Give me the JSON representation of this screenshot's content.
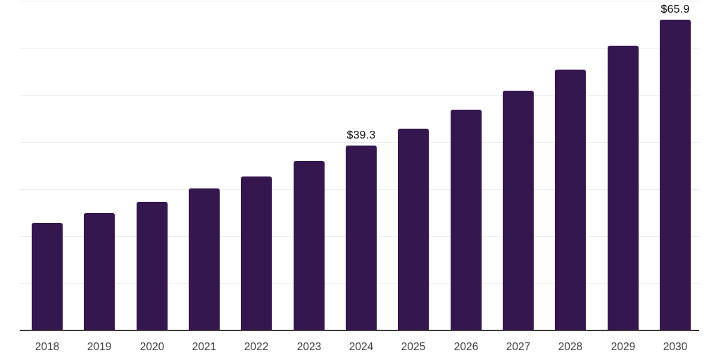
{
  "chart_data": {
    "type": "bar",
    "title": "",
    "xlabel": "",
    "ylabel": "",
    "categories": [
      "2018",
      "2019",
      "2020",
      "2021",
      "2022",
      "2023",
      "2024",
      "2025",
      "2026",
      "2027",
      "2028",
      "2029",
      "2030"
    ],
    "values": [
      22.9,
      25.0,
      27.3,
      30.1,
      32.7,
      36.0,
      39.3,
      42.9,
      46.8,
      50.9,
      55.4,
      60.5,
      65.9
    ],
    "data_labels": {
      "2024": "$39.3",
      "2030": "$65.9"
    },
    "ylim": [
      0,
      70
    ],
    "gridline_step": 10,
    "grid": true,
    "legend_position": "none",
    "bar_color": "#34174f",
    "axis_color": "#3c3c3c",
    "gridline_color": "#ededed",
    "value_label_color": "#0c0c0c",
    "tick_label_color": "#3b3b3b"
  }
}
